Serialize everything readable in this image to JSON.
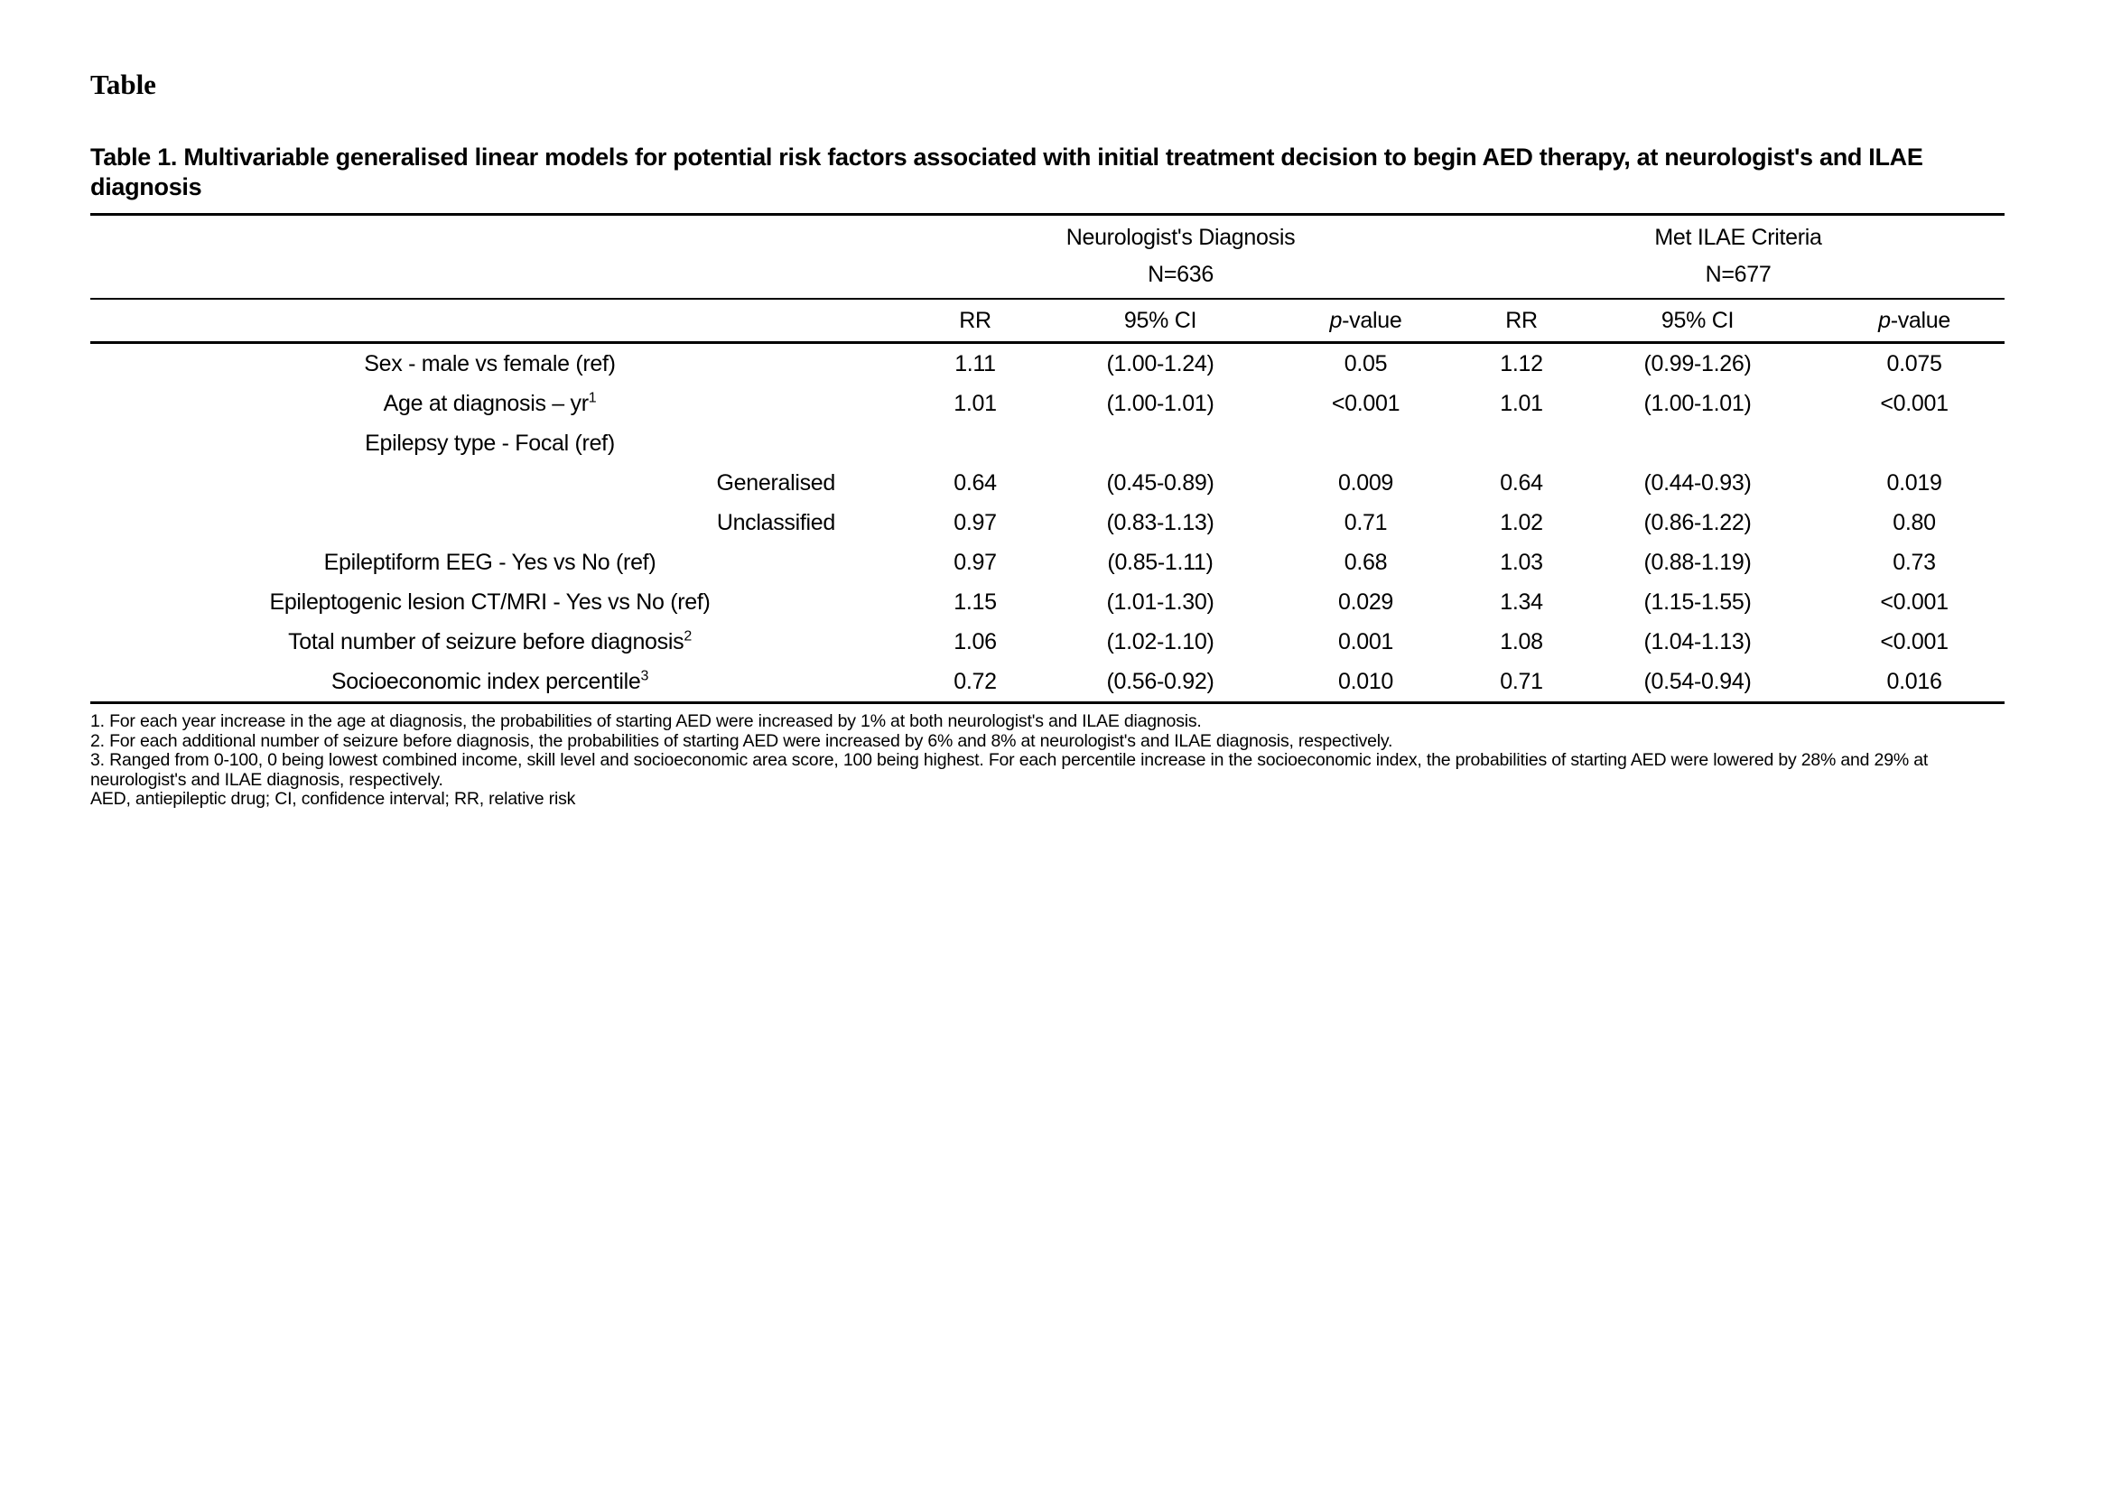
{
  "page": {
    "heading": "Table"
  },
  "table": {
    "title": "Table 1. Multivariable generalised linear models for potential risk factors associated with initial treatment decision to begin AED therapy, at neurologist's and ILAE diagnosis",
    "groups": [
      {
        "label": "Neurologist's Diagnosis",
        "n": "N=636"
      },
      {
        "label": "Met ILAE Criteria",
        "n": "N=677"
      }
    ],
    "subheaders": [
      {
        "label": "RR",
        "italic_first": false
      },
      {
        "label": "95% CI",
        "italic_first": false
      },
      {
        "label": "p-value",
        "italic_first": true
      },
      {
        "label": "RR",
        "italic_first": false
      },
      {
        "label": "95% CI",
        "italic_first": false
      },
      {
        "label": "p-value",
        "italic_first": true
      }
    ],
    "rows": [
      {
        "label": "Sex - male vs female (ref)",
        "sup": "",
        "indent": false,
        "values": [
          "1.11",
          "(1.00-1.24)",
          "0.05",
          "1.12",
          "(0.99-1.26)",
          "0.075"
        ]
      },
      {
        "label": "Age at diagnosis – yr",
        "sup": "1",
        "indent": false,
        "values": [
          "1.01",
          "(1.00-1.01)",
          "<0.001",
          "1.01",
          "(1.00-1.01)",
          "<0.001"
        ]
      },
      {
        "label": "Epilepsy type - Focal (ref)",
        "sup": "",
        "indent": false,
        "values": [
          "",
          "",
          "",
          "",
          "",
          ""
        ]
      },
      {
        "label": "Generalised",
        "sup": "",
        "indent": true,
        "values": [
          "0.64",
          "(0.45-0.89)",
          "0.009",
          "0.64",
          "(0.44-0.93)",
          "0.019"
        ]
      },
      {
        "label": "Unclassified",
        "sup": "",
        "indent": true,
        "values": [
          "0.97",
          "(0.83-1.13)",
          "0.71",
          "1.02",
          "(0.86-1.22)",
          "0.80"
        ]
      },
      {
        "label": "Epileptiform EEG - Yes vs No (ref)",
        "sup": "",
        "indent": false,
        "values": [
          "0.97",
          "(0.85-1.11)",
          "0.68",
          "1.03",
          "(0.88-1.19)",
          "0.73"
        ]
      },
      {
        "label": "Epileptogenic lesion CT/MRI - Yes vs No (ref)",
        "sup": "",
        "indent": false,
        "values": [
          "1.15",
          "(1.01-1.30)",
          "0.029",
          "1.34",
          "(1.15-1.55)",
          "<0.001"
        ]
      },
      {
        "label": "Total number of seizure before diagnosis",
        "sup": "2",
        "indent": false,
        "values": [
          "1.06",
          "(1.02-1.10)",
          "0.001",
          "1.08",
          "(1.04-1.13)",
          "<0.001"
        ]
      },
      {
        "label": "Socioeconomic index percentile",
        "sup": "3",
        "indent": false,
        "values": [
          "0.72",
          "(0.56-0.92)",
          "0.010",
          "0.71",
          "(0.54-0.94)",
          "0.016"
        ]
      }
    ],
    "footnotes": [
      "1. For each year increase in the age at diagnosis, the probabilities of starting AED were increased by 1% at both neurologist's and ILAE diagnosis.",
      "2. For each additional number of seizure before diagnosis, the probabilities of starting AED were increased by 6% and 8% at neurologist's and ILAE diagnosis, respectively.",
      "3. Ranged from 0-100, 0 being lowest combined income, skill level and socioeconomic area score, 100 being highest. For each percentile increase in the socioeconomic index, the probabilities of starting AED were lowered by 28% and 29% at neurologist's and ILAE diagnosis, respectively."
    ],
    "abbreviations": "AED, antiepileptic drug; CI, confidence interval; RR, relative risk"
  }
}
